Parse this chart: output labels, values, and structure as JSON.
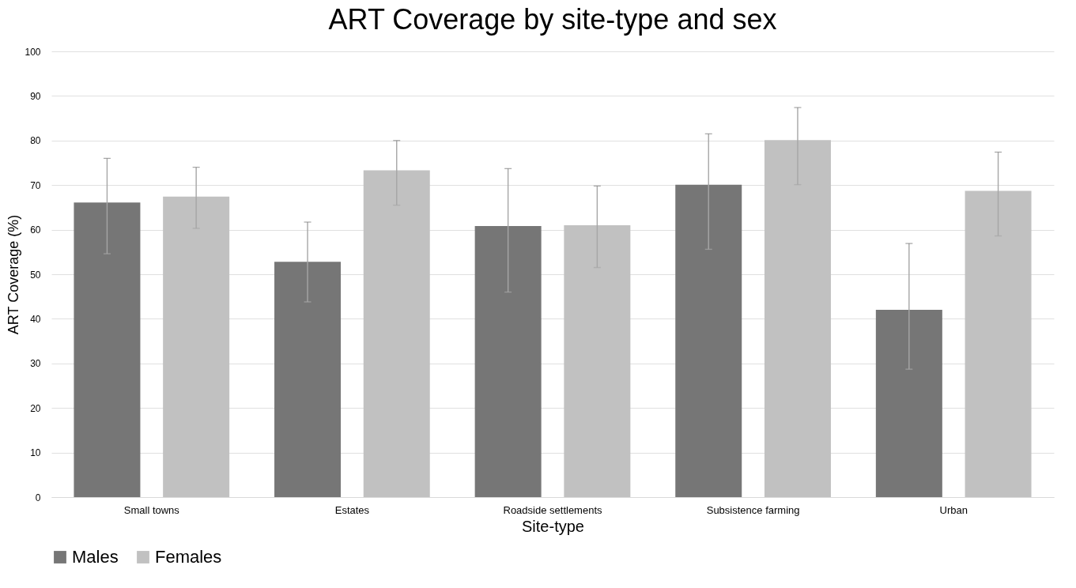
{
  "chart_data": {
    "type": "bar",
    "title": "ART Coverage by site-type and sex",
    "xlabel": "Site-type",
    "ylabel": "ART Coverage (%)",
    "categories": [
      "Small towns",
      "Estates",
      "Roadside settlements",
      "Subsistence farming",
      "Urban"
    ],
    "series": [
      {
        "name": "Males",
        "color": "#767676",
        "values": [
          66.1,
          52.8,
          60.8,
          70.1,
          42.0
        ],
        "errors": [
          [
            54.6,
            76.0
          ],
          [
            43.8,
            61.7
          ],
          [
            46.0,
            73.7
          ],
          [
            55.6,
            81.5
          ],
          [
            28.7,
            56.9
          ]
        ]
      },
      {
        "name": "Females",
        "color": "#c1c1c1",
        "values": [
          67.4,
          73.3,
          61.0,
          80.1,
          68.7
        ],
        "errors": [
          [
            60.3,
            74.0
          ],
          [
            65.5,
            80.0
          ],
          [
            51.5,
            69.8
          ],
          [
            70.1,
            87.4
          ],
          [
            58.6,
            77.4
          ]
        ]
      }
    ],
    "ylim": [
      0,
      100
    ],
    "yticks": [
      0,
      10,
      20,
      30,
      40,
      50,
      60,
      70,
      80,
      90,
      100
    ],
    "grid": "y",
    "legend": "bottom"
  }
}
